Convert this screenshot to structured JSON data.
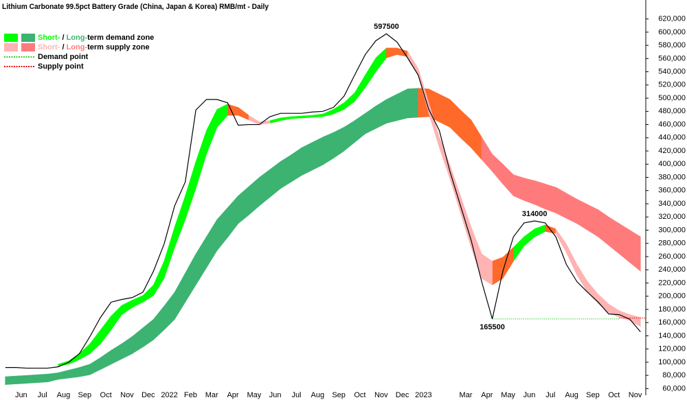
{
  "chart_data": {
    "type": "line",
    "title": "Lithium Carbonate 99.5pct Battery Grade (China, Japan & Korea) RMB/mt - Daily",
    "categories": [
      null,
      "Jun",
      null,
      "Jul",
      null,
      "Aug",
      null,
      "Sep",
      null,
      "Oct",
      null,
      "Nov",
      null,
      "Dec",
      null,
      "2022",
      null,
      "Feb",
      null,
      "Mar",
      null,
      "Apr",
      null,
      "May",
      null,
      "Jun",
      null,
      "Jul",
      null,
      "Aug",
      null,
      "Sep",
      null,
      "Oct",
      null,
      "Nov",
      null,
      "Dec",
      null,
      "2023",
      null,
      null,
      null,
      "Mar",
      null,
      "Apr",
      null,
      "May",
      null,
      "Jun",
      null,
      "Jul",
      null,
      "Aug",
      null,
      "Sep",
      null,
      "Oct",
      null,
      "Nov",
      null
    ],
    "ylim": [
      50000,
      630000
    ],
    "yticks": [
      {
        "value": 60000,
        "label": "60,000"
      },
      {
        "value": 80000,
        "label": "80,000"
      },
      {
        "value": 100000,
        "label": "100,000"
      },
      {
        "value": 120000,
        "label": "120,000"
      },
      {
        "value": 140000,
        "label": "140,000"
      },
      {
        "value": 160000,
        "label": "160,000"
      },
      {
        "value": 180000,
        "label": "180,000"
      },
      {
        "value": 200000,
        "label": "200,000"
      },
      {
        "value": 220000,
        "label": "220,000"
      },
      {
        "value": 240000,
        "label": "240,000"
      },
      {
        "value": 260000,
        "label": "260,000"
      },
      {
        "value": 280000,
        "label": "280,000"
      },
      {
        "value": 300000,
        "label": "300,000"
      },
      {
        "value": 320000,
        "label": "320,000"
      },
      {
        "value": 340000,
        "label": "340,000"
      },
      {
        "value": 360000,
        "label": "360,000"
      },
      {
        "value": 380000,
        "label": "380,000"
      },
      {
        "value": 400000,
        "label": "400,000"
      },
      {
        "value": 420000,
        "label": "420,000"
      },
      {
        "value": 440000,
        "label": "440,000"
      },
      {
        "value": 460000,
        "label": "460,000"
      },
      {
        "value": 480000,
        "label": "480,000"
      },
      {
        "value": 500000,
        "label": "500,000"
      },
      {
        "value": 520000,
        "label": "520,000"
      },
      {
        "value": 540000,
        "label": "540,000"
      },
      {
        "value": 560000,
        "label": "560,000"
      },
      {
        "value": 580000,
        "label": "580,000"
      },
      {
        "value": 600000,
        "label": "600,000"
      },
      {
        "value": 620000,
        "label": "620,000"
      }
    ],
    "grid": false,
    "series": [
      {
        "color": "#000000",
        "values": [
          92000,
          92000,
          91000,
          91000,
          91000,
          93000,
          100000,
          113000,
          139000,
          168000,
          191000,
          195000,
          198000,
          206000,
          238000,
          279000,
          337000,
          373000,
          482000,
          498000,
          498000,
          493000,
          459000,
          460000,
          460000,
          472000,
          477000,
          477000,
          477000,
          479000,
          480000,
          486000,
          503000,
          535000,
          566000,
          587000,
          597500,
          585000,
          561000,
          535000,
          483000,
          451000,
          389000,
          337000,
          285000,
          222000,
          165500,
          238000,
          290000,
          311000,
          314000,
          311000,
          290000,
          248000,
          222000,
          206000,
          191000,
          173000,
          172000,
          165000,
          146000
        ]
      }
    ],
    "bands": [
      {
        "color": "#3cb371",
        "upper": [
          78000,
          79000,
          80000,
          81000,
          82000,
          84000,
          88000,
          92000,
          97000,
          107000,
          118000,
          128000,
          139000,
          152000,
          165000,
          185000,
          206000,
          235000,
          264000,
          290000,
          316000,
          334000,
          352000,
          366000,
          380000,
          392000,
          404000,
          414000,
          425000,
          433000,
          441000,
          448000,
          456000,
          466000,
          477000,
          488000,
          498000,
          506000,
          514000,
          515000,
          null,
          null,
          null,
          null,
          null,
          null,
          null,
          null,
          null,
          null,
          null,
          null,
          null,
          null,
          null,
          null,
          null,
          null,
          null,
          null,
          null
        ],
        "lower": [
          66000,
          67000,
          68000,
          69000,
          70000,
          74000,
          76000,
          78000,
          81000,
          89000,
          97000,
          105000,
          113000,
          123000,
          134000,
          149000,
          165000,
          191000,
          217000,
          243000,
          269000,
          289000,
          310000,
          323000,
          337000,
          350000,
          363000,
          373000,
          383000,
          391000,
          399000,
          409000,
          420000,
          433000,
          446000,
          454000,
          462000,
          466000,
          470000,
          471000,
          null,
          null,
          null,
          null,
          null,
          null,
          null,
          null,
          null,
          null,
          null,
          null,
          null,
          null,
          null,
          null,
          null,
          null,
          null,
          null,
          null
        ]
      },
      {
        "color": "#ff6a2a",
        "upper": [
          null,
          null,
          null,
          null,
          null,
          null,
          null,
          null,
          null,
          null,
          null,
          null,
          null,
          null,
          null,
          null,
          null,
          null,
          null,
          null,
          null,
          null,
          null,
          null,
          null,
          null,
          null,
          null,
          null,
          null,
          null,
          null,
          null,
          null,
          null,
          null,
          null,
          null,
          null,
          515000,
          514000,
          506000,
          498000,
          482000,
          467000,
          441000,
          null,
          null,
          null,
          null,
          null,
          null,
          null,
          null,
          null,
          null,
          null,
          null,
          null,
          null,
          null
        ],
        "lower": [
          null,
          null,
          null,
          null,
          null,
          null,
          null,
          null,
          null,
          null,
          null,
          null,
          null,
          null,
          null,
          null,
          null,
          null,
          null,
          null,
          null,
          null,
          null,
          null,
          null,
          null,
          null,
          null,
          null,
          null,
          null,
          null,
          null,
          null,
          null,
          null,
          null,
          null,
          null,
          471000,
          472000,
          464000,
          456000,
          440000,
          425000,
          407000,
          null,
          null,
          null,
          null,
          null,
          null,
          null,
          null,
          null,
          null,
          null,
          null,
          null,
          null,
          null
        ]
      },
      {
        "color": "#ff7b7b",
        "upper": [
          null,
          null,
          null,
          null,
          null,
          null,
          null,
          null,
          null,
          null,
          null,
          null,
          null,
          null,
          null,
          null,
          null,
          null,
          null,
          null,
          null,
          null,
          null,
          null,
          null,
          null,
          null,
          null,
          null,
          null,
          null,
          null,
          null,
          null,
          null,
          null,
          null,
          null,
          null,
          null,
          null,
          null,
          null,
          null,
          null,
          441000,
          415000,
          400000,
          384000,
          379000,
          375000,
          370000,
          365000,
          356000,
          347000,
          339000,
          331000,
          320000,
          310000,
          300000,
          290000
        ],
        "lower": [
          null,
          null,
          null,
          null,
          null,
          null,
          null,
          null,
          null,
          null,
          null,
          null,
          null,
          null,
          null,
          null,
          null,
          null,
          null,
          null,
          null,
          null,
          null,
          null,
          null,
          null,
          null,
          null,
          null,
          null,
          null,
          null,
          null,
          null,
          null,
          null,
          null,
          null,
          null,
          null,
          null,
          null,
          null,
          null,
          null,
          407000,
          389000,
          370000,
          352000,
          345000,
          339000,
          332000,
          326000,
          318000,
          310000,
          300000,
          290000,
          277000,
          264000,
          251000,
          238000
        ]
      },
      {
        "color": "#00ff00",
        "upper": [
          null,
          null,
          null,
          null,
          null,
          97000,
          102000,
          113000,
          128000,
          149000,
          170000,
          186000,
          194000,
          201000,
          217000,
          253000,
          305000,
          352000,
          404000,
          451000,
          483000,
          491000,
          null,
          null,
          null,
          466000,
          470000,
          472000,
          473000,
          474000,
          476000,
          483000,
          493000,
          508000,
          535000,
          561000,
          576000,
          null,
          null,
          null,
          null,
          null,
          null,
          null,
          null,
          null,
          null,
          null,
          274000,
          290000,
          302000,
          308000,
          null,
          null,
          null,
          null,
          null,
          null,
          null,
          null,
          null
        ],
        "lower": [
          null,
          null,
          null,
          null,
          null,
          94000,
          97000,
          104000,
          113000,
          128000,
          149000,
          172000,
          183000,
          191000,
          201000,
          227000,
          274000,
          316000,
          363000,
          415000,
          456000,
          474000,
          null,
          null,
          null,
          462000,
          466000,
          469000,
          470000,
          471000,
          472000,
          476000,
          483000,
          495000,
          516000,
          540000,
          561000,
          null,
          null,
          null,
          null,
          null,
          null,
          null,
          null,
          null,
          null,
          null,
          253000,
          276000,
          290000,
          298000,
          null,
          null,
          null,
          null,
          null,
          null,
          null,
          null,
          null
        ]
      },
      {
        "color": "#ff6a2a",
        "upper": [
          null,
          null,
          null,
          null,
          null,
          null,
          null,
          null,
          null,
          null,
          null,
          null,
          null,
          null,
          null,
          null,
          null,
          null,
          null,
          null,
          null,
          491000,
          486000,
          474000,
          null,
          null,
          null,
          null,
          null,
          null,
          null,
          null,
          null,
          null,
          null,
          null,
          576000,
          576000,
          571000,
          null,
          null,
          null,
          null,
          null,
          null,
          null,
          253000,
          259000,
          274000,
          null,
          null,
          308000,
          302000,
          null,
          null,
          null,
          null,
          null,
          null,
          null,
          null
        ],
        "lower": [
          null,
          null,
          null,
          null,
          null,
          null,
          null,
          null,
          null,
          null,
          null,
          null,
          null,
          null,
          null,
          null,
          null,
          null,
          null,
          null,
          null,
          474000,
          474000,
          467000,
          null,
          null,
          null,
          null,
          null,
          null,
          null,
          null,
          null,
          null,
          null,
          null,
          561000,
          566000,
          563000,
          null,
          null,
          null,
          null,
          null,
          null,
          null,
          217000,
          227000,
          253000,
          null,
          null,
          298000,
          295000,
          null,
          null,
          null,
          null,
          null,
          null,
          null,
          null
        ]
      },
      {
        "color": "#ffb3b3",
        "upper": [
          null,
          null,
          null,
          null,
          null,
          null,
          null,
          null,
          null,
          null,
          null,
          null,
          null,
          null,
          null,
          null,
          null,
          null,
          null,
          null,
          null,
          null,
          null,
          474000,
          464000,
          466000,
          null,
          null,
          null,
          null,
          null,
          null,
          null,
          null,
          null,
          null,
          null,
          null,
          571000,
          545000,
          493000,
          441000,
          399000,
          352000,
          305000,
          264000,
          253000,
          null,
          null,
          null,
          null,
          null,
          302000,
          279000,
          248000,
          222000,
          203000,
          188000,
          178000,
          172000,
          168000
        ],
        "lower": [
          null,
          null,
          null,
          null,
          null,
          null,
          null,
          null,
          null,
          null,
          null,
          null,
          null,
          null,
          null,
          null,
          null,
          null,
          null,
          null,
          null,
          null,
          null,
          467000,
          460000,
          462000,
          null,
          null,
          null,
          null,
          null,
          null,
          null,
          null,
          null,
          null,
          null,
          null,
          563000,
          535000,
          477000,
          425000,
          378000,
          326000,
          274000,
          227000,
          217000,
          null,
          null,
          null,
          null,
          null,
          295000,
          266000,
          232000,
          206000,
          189000,
          175000,
          168000,
          163000,
          154000
        ]
      }
    ],
    "supply_point": 167000,
    "legend": [
      {
        "swatches": [
          "#00ff00",
          "#3cb371"
        ],
        "parts": [
          {
            "text": "Short-",
            "color": "#00ff00"
          },
          {
            "text": " / "
          },
          {
            "text": "Long-",
            "color": "#3cb371"
          },
          {
            "text": "term demand zone"
          }
        ]
      },
      {
        "swatches": [
          "#ffb3b3",
          "#ff7b7b"
        ],
        "parts": [
          {
            "text": "Short-",
            "color": "#ffb3b3"
          },
          {
            "text": " / "
          },
          {
            "text": "Long-",
            "color": "#ff7b7b"
          },
          {
            "text": "term supply zone"
          }
        ]
      },
      {
        "line": "#33cc33",
        "parts": [
          {
            "text": "Demand point"
          }
        ]
      },
      {
        "line": "#ee0000",
        "parts": [
          {
            "text": "Supply point"
          }
        ]
      }
    ]
  }
}
